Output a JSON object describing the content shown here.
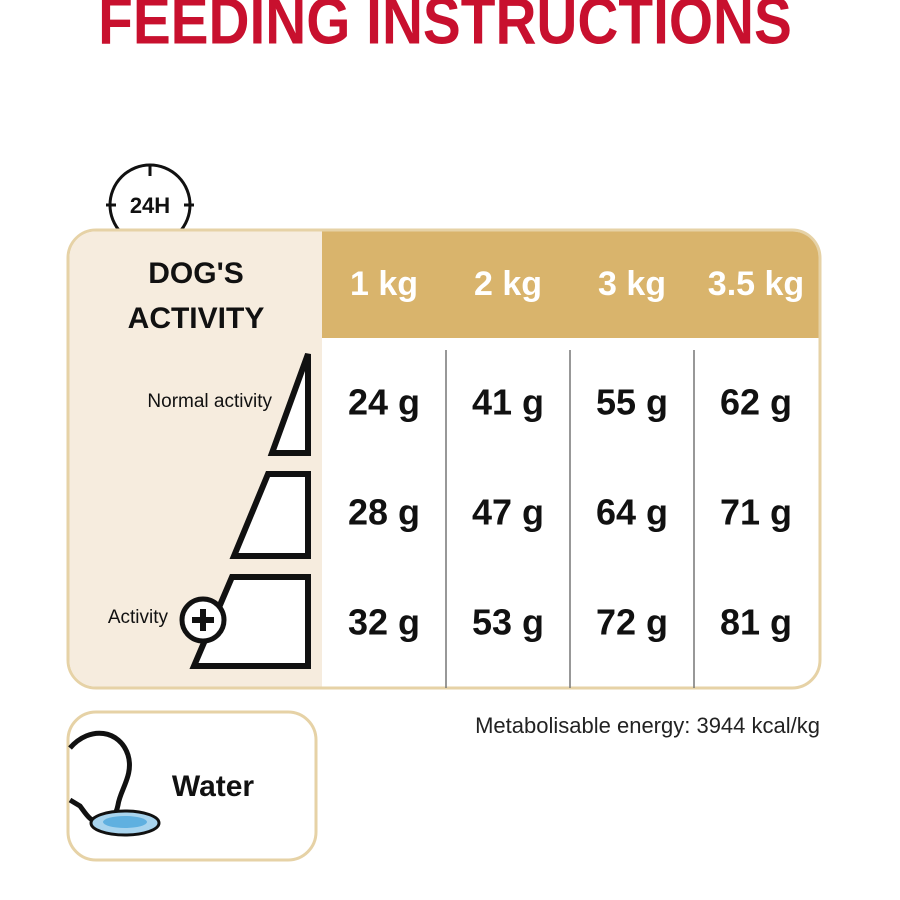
{
  "title": "FEEDING INSTRUCTIONS",
  "clock_label": "24H",
  "table": {
    "header_lines": [
      "DOG'S",
      "ACTIVITY"
    ],
    "weights": [
      "1 kg",
      "2 kg",
      "3 kg",
      "3.5 kg"
    ],
    "rows": [
      [
        "24 g",
        "41 g",
        "55 g",
        "62 g"
      ],
      [
        "28 g",
        "47 g",
        "64 g",
        "71 g"
      ],
      [
        "32 g",
        "53 g",
        "72 g",
        "81 g"
      ]
    ],
    "activity_labels": {
      "top": "Normal activity",
      "bottom": "Activity"
    }
  },
  "energy_note": "Metabolisable energy: 3944 kcal/kg",
  "water_label": "Water"
}
